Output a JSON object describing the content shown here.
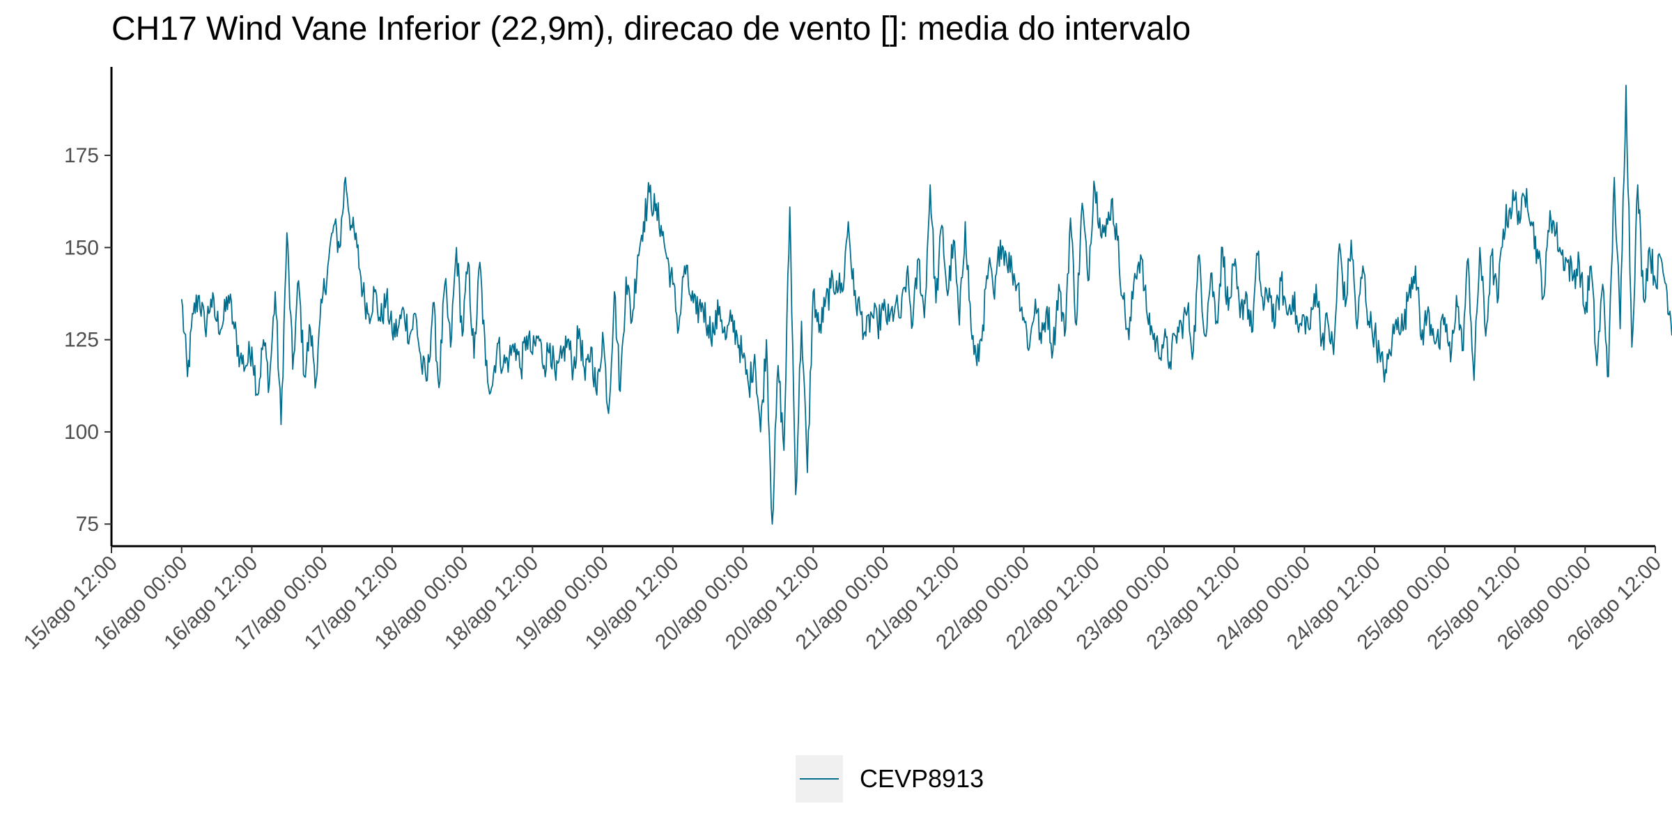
{
  "chart_data": {
    "type": "line",
    "title": "CH17 Wind Vane Inferior (22,9m), direcao de vento []: media do intervalo",
    "xlabel": "",
    "ylabel": "",
    "x_range": [
      "15/ago 12:00",
      "26/ago 12:00"
    ],
    "ylim": [
      69,
      199
    ],
    "yticks": [
      75,
      100,
      125,
      150,
      175
    ],
    "xticks": [
      "15/ago 12:00",
      "16/ago 00:00",
      "16/ago 12:00",
      "17/ago 00:00",
      "17/ago 12:00",
      "18/ago 00:00",
      "18/ago 12:00",
      "19/ago 00:00",
      "19/ago 12:00",
      "20/ago 00:00",
      "20/ago 12:00",
      "21/ago 00:00",
      "21/ago 12:00",
      "22/ago 00:00",
      "22/ago 12:00",
      "23/ago 00:00",
      "23/ago 12:00",
      "24/ago 00:00",
      "24/ago 12:00",
      "25/ago 00:00",
      "25/ago 12:00",
      "26/ago 00:00",
      "26/ago 12:00"
    ],
    "grid": false,
    "legend_position": "bottom",
    "series": [
      {
        "name": "CEVP8913",
        "color": "#006d8c",
        "points": [
          [
            "16/ago 00:00",
            136
          ],
          [
            "16/ago 01:00",
            115
          ],
          [
            "16/ago 02:00",
            132
          ],
          [
            "16/ago 03:00",
            137
          ],
          [
            "16/ago 04:00",
            128
          ],
          [
            "16/ago 05:00",
            136
          ],
          [
            "16/ago 06:00",
            130
          ],
          [
            "16/ago 07:00",
            129
          ],
          [
            "16/ago 08:00",
            137
          ],
          [
            "16/ago 09:00",
            128
          ],
          [
            "16/ago 10:00",
            120
          ],
          [
            "16/ago 11:00",
            118
          ],
          [
            "16/ago 12:00",
            123
          ],
          [
            "16/ago 13:00",
            110
          ],
          [
            "16/ago 14:00",
            125
          ],
          [
            "16/ago 15:00",
            113
          ],
          [
            "16/ago 16:00",
            138
          ],
          [
            "16/ago 17:00",
            102
          ],
          [
            "16/ago 18:00",
            154
          ],
          [
            "16/ago 19:00",
            117
          ],
          [
            "16/ago 20:00",
            141
          ],
          [
            "16/ago 21:00",
            115
          ],
          [
            "16/ago 22:00",
            128
          ],
          [
            "16/ago 23:00",
            114
          ],
          [
            "17/ago 00:00",
            135
          ],
          [
            "17/ago 01:00",
            145
          ],
          [
            "17/ago 02:00",
            156
          ],
          [
            "17/ago 03:00",
            150
          ],
          [
            "17/ago 04:00",
            169
          ],
          [
            "17/ago 05:00",
            156
          ],
          [
            "17/ago 06:00",
            150
          ],
          [
            "17/ago 07:00",
            138
          ],
          [
            "17/ago 08:00",
            132
          ],
          [
            "17/ago 09:00",
            138
          ],
          [
            "17/ago 10:00",
            130
          ],
          [
            "17/ago 11:00",
            136
          ],
          [
            "17/ago 12:00",
            127
          ],
          [
            "17/ago 13:00",
            128
          ],
          [
            "17/ago 14:00",
            133
          ],
          [
            "17/ago 15:00",
            126
          ],
          [
            "17/ago 16:00",
            132
          ],
          [
            "17/ago 17:00",
            118
          ],
          [
            "17/ago 18:00",
            114
          ],
          [
            "17/ago 19:00",
            135
          ],
          [
            "17/ago 20:00",
            112
          ],
          [
            "17/ago 21:00",
            140
          ],
          [
            "17/ago 22:00",
            123
          ],
          [
            "17/ago 23:00",
            150
          ],
          [
            "18/ago 00:00",
            126
          ],
          [
            "18/ago 01:00",
            146
          ],
          [
            "18/ago 02:00",
            120
          ],
          [
            "18/ago 03:00",
            146
          ],
          [
            "18/ago 04:00",
            118
          ],
          [
            "18/ago 05:00",
            112
          ],
          [
            "18/ago 06:00",
            124
          ],
          [
            "18/ago 07:00",
            118
          ],
          [
            "18/ago 08:00",
            120
          ],
          [
            "18/ago 09:00",
            124
          ],
          [
            "18/ago 10:00",
            117
          ],
          [
            "18/ago 11:00",
            126
          ],
          [
            "18/ago 12:00",
            121
          ],
          [
            "18/ago 13:00",
            126
          ],
          [
            "18/ago 14:00",
            118
          ],
          [
            "18/ago 15:00",
            124
          ],
          [
            "18/ago 16:00",
            114
          ],
          [
            "18/ago 17:00",
            120
          ],
          [
            "18/ago 18:00",
            125
          ],
          [
            "18/ago 19:00",
            117
          ],
          [
            "18/ago 20:00",
            128
          ],
          [
            "18/ago 21:00",
            114
          ],
          [
            "18/ago 22:00",
            123
          ],
          [
            "18/ago 23:00",
            110
          ],
          [
            "19/ago 00:00",
            127
          ],
          [
            "19/ago 01:00",
            105
          ],
          [
            "19/ago 02:00",
            138
          ],
          [
            "19/ago 03:00",
            111
          ],
          [
            "19/ago 04:00",
            142
          ],
          [
            "19/ago 05:00",
            130
          ],
          [
            "19/ago 06:00",
            148
          ],
          [
            "19/ago 07:00",
            157
          ],
          [
            "19/ago 08:00",
            165
          ],
          [
            "19/ago 09:00",
            160
          ],
          [
            "19/ago 10:00",
            156
          ],
          [
            "19/ago 11:00",
            147
          ],
          [
            "19/ago 12:00",
            140
          ],
          [
            "19/ago 13:00",
            128
          ],
          [
            "19/ago 14:00",
            145
          ],
          [
            "19/ago 15:00",
            137
          ],
          [
            "19/ago 16:00",
            132
          ],
          [
            "19/ago 17:00",
            135
          ],
          [
            "19/ago 18:00",
            129
          ],
          [
            "19/ago 19:00",
            127
          ],
          [
            "19/ago 20:00",
            134
          ],
          [
            "19/ago 21:00",
            125
          ],
          [
            "19/ago 22:00",
            130
          ],
          [
            "19/ago 23:00",
            126
          ],
          [
            "20/ago 00:00",
            120
          ],
          [
            "20/ago 01:00",
            112
          ],
          [
            "20/ago 02:00",
            121
          ],
          [
            "20/ago 03:00",
            100
          ],
          [
            "20/ago 04:00",
            125
          ],
          [
            "20/ago 05:00",
            75
          ],
          [
            "20/ago 06:00",
            118
          ],
          [
            "20/ago 07:00",
            95
          ],
          [
            "20/ago 08:00",
            161
          ],
          [
            "20/ago 09:00",
            83
          ],
          [
            "20/ago 10:00",
            130
          ],
          [
            "20/ago 11:00",
            89
          ],
          [
            "20/ago 12:00",
            138
          ],
          [
            "20/ago 13:00",
            127
          ],
          [
            "20/ago 14:00",
            134
          ],
          [
            "20/ago 15:00",
            139
          ],
          [
            "20/ago 16:00",
            141
          ],
          [
            "20/ago 17:00",
            138
          ],
          [
            "20/ago 18:00",
            157
          ],
          [
            "20/ago 19:00",
            137
          ],
          [
            "20/ago 20:00",
            133
          ],
          [
            "20/ago 21:00",
            126
          ],
          [
            "20/ago 22:00",
            132
          ],
          [
            "20/ago 23:00",
            129
          ],
          [
            "21/ago 00:00",
            133
          ],
          [
            "21/ago 01:00",
            130
          ],
          [
            "21/ago 02:00",
            134
          ],
          [
            "21/ago 03:00",
            131
          ],
          [
            "21/ago 04:00",
            143
          ],
          [
            "21/ago 05:00",
            129
          ],
          [
            "21/ago 06:00",
            147
          ],
          [
            "21/ago 07:00",
            131
          ],
          [
            "21/ago 08:00",
            167
          ],
          [
            "21/ago 09:00",
            135
          ],
          [
            "21/ago 10:00",
            156
          ],
          [
            "21/ago 11:00",
            137
          ],
          [
            "21/ago 12:00",
            152
          ],
          [
            "21/ago 13:00",
            129
          ],
          [
            "21/ago 14:00",
            157
          ],
          [
            "21/ago 15:00",
            128
          ],
          [
            "21/ago 16:00",
            118
          ],
          [
            "21/ago 17:00",
            129
          ],
          [
            "21/ago 18:00",
            145
          ],
          [
            "21/ago 19:00",
            136
          ],
          [
            "21/ago 20:00",
            152
          ],
          [
            "21/ago 21:00",
            148
          ],
          [
            "21/ago 22:00",
            144
          ],
          [
            "21/ago 23:00",
            140
          ],
          [
            "22/ago 00:00",
            131
          ],
          [
            "22/ago 01:00",
            123
          ],
          [
            "22/ago 02:00",
            136
          ],
          [
            "22/ago 03:00",
            124
          ],
          [
            "22/ago 04:00",
            134
          ],
          [
            "22/ago 05:00",
            122
          ],
          [
            "22/ago 06:00",
            140
          ],
          [
            "22/ago 07:00",
            126
          ],
          [
            "22/ago 08:00",
            158
          ],
          [
            "22/ago 09:00",
            129
          ],
          [
            "22/ago 10:00",
            162
          ],
          [
            "22/ago 11:00",
            141
          ],
          [
            "22/ago 12:00",
            168
          ],
          [
            "22/ago 13:00",
            158
          ],
          [
            "22/ago 14:00",
            153
          ],
          [
            "22/ago 15:00",
            163
          ],
          [
            "22/ago 16:00",
            152
          ],
          [
            "22/ago 17:00",
            136
          ],
          [
            "22/ago 18:00",
            125
          ],
          [
            "22/ago 19:00",
            143
          ],
          [
            "22/ago 20:00",
            148
          ],
          [
            "22/ago 21:00",
            133
          ],
          [
            "22/ago 22:00",
            127
          ],
          [
            "22/ago 23:00",
            122
          ],
          [
            "23/ago 00:00",
            125
          ],
          [
            "23/ago 01:00",
            119
          ],
          [
            "23/ago 02:00",
            126
          ],
          [
            "23/ago 03:00",
            129
          ],
          [
            "23/ago 04:00",
            133
          ],
          [
            "23/ago 05:00",
            122
          ],
          [
            "23/ago 06:00",
            148
          ],
          [
            "23/ago 07:00",
            126
          ],
          [
            "23/ago 08:00",
            143
          ],
          [
            "23/ago 09:00",
            130
          ],
          [
            "23/ago 10:00",
            150
          ],
          [
            "23/ago 11:00",
            133
          ],
          [
            "23/ago 12:00",
            145
          ],
          [
            "23/ago 13:00",
            131
          ],
          [
            "23/ago 14:00",
            138
          ],
          [
            "23/ago 15:00",
            127
          ],
          [
            "23/ago 16:00",
            148
          ],
          [
            "23/ago 17:00",
            133
          ],
          [
            "23/ago 18:00",
            139
          ],
          [
            "23/ago 19:00",
            129
          ],
          [
            "23/ago 20:00",
            141
          ],
          [
            "23/ago 21:00",
            132
          ],
          [
            "23/ago 22:00",
            137
          ],
          [
            "23/ago 23:00",
            127
          ],
          [
            "24/ago 00:00",
            131
          ],
          [
            "24/ago 01:00",
            128
          ],
          [
            "24/ago 02:00",
            140
          ],
          [
            "24/ago 03:00",
            125
          ],
          [
            "24/ago 04:00",
            130
          ],
          [
            "24/ago 05:00",
            121
          ],
          [
            "24/ago 06:00",
            151
          ],
          [
            "24/ago 07:00",
            134
          ],
          [
            "24/ago 08:00",
            152
          ],
          [
            "24/ago 09:00",
            128
          ],
          [
            "24/ago 10:00",
            145
          ],
          [
            "24/ago 11:00",
            130
          ],
          [
            "24/ago 12:00",
            127
          ],
          [
            "24/ago 13:00",
            119
          ],
          [
            "24/ago 14:00",
            116
          ],
          [
            "24/ago 15:00",
            125
          ],
          [
            "24/ago 16:00",
            131
          ],
          [
            "24/ago 17:00",
            128
          ],
          [
            "24/ago 18:00",
            140
          ],
          [
            "24/ago 19:00",
            145
          ],
          [
            "24/ago 20:00",
            125
          ],
          [
            "24/ago 21:00",
            132
          ],
          [
            "24/ago 22:00",
            128
          ],
          [
            "24/ago 23:00",
            123
          ],
          [
            "25/ago 00:00",
            131
          ],
          [
            "25/ago 01:00",
            119
          ],
          [
            "25/ago 02:00",
            137
          ],
          [
            "25/ago 03:00",
            122
          ],
          [
            "25/ago 04:00",
            147
          ],
          [
            "25/ago 05:00",
            114
          ],
          [
            "25/ago 06:00",
            150
          ],
          [
            "25/ago 07:00",
            126
          ],
          [
            "25/ago 08:00",
            148
          ],
          [
            "25/ago 09:00",
            135
          ],
          [
            "25/ago 10:00",
            155
          ],
          [
            "25/ago 11:00",
            160
          ],
          [
            "25/ago 12:00",
            163
          ],
          [
            "25/ago 13:00",
            158
          ],
          [
            "25/ago 14:00",
            166
          ],
          [
            "25/ago 15:00",
            156
          ],
          [
            "25/ago 16:00",
            147
          ],
          [
            "25/ago 17:00",
            137
          ],
          [
            "25/ago 18:00",
            160
          ],
          [
            "25/ago 19:00",
            154
          ],
          [
            "25/ago 20:00",
            148
          ],
          [
            "25/ago 21:00",
            146
          ],
          [
            "25/ago 22:00",
            142
          ],
          [
            "25/ago 23:00",
            146
          ],
          [
            "26/ago 00:00",
            132
          ],
          [
            "26/ago 01:00",
            145
          ],
          [
            "26/ago 02:00",
            118
          ],
          [
            "26/ago 03:00",
            140
          ],
          [
            "26/ago 04:00",
            115
          ],
          [
            "26/ago 05:00",
            169
          ],
          [
            "26/ago 06:00",
            128
          ],
          [
            "26/ago 07:00",
            194
          ],
          [
            "26/ago 08:00",
            123
          ],
          [
            "26/ago 09:00",
            167
          ],
          [
            "26/ago 10:00",
            136
          ],
          [
            "26/ago 11:00",
            150
          ],
          [
            "26/ago 12:00",
            141
          ],
          [
            "26/ago 13:00",
            147
          ],
          [
            "26/ago 14:00",
            138
          ],
          [
            "26/ago 15:00",
            128
          ],
          [
            "26/ago 16:00",
            132
          ]
        ]
      }
    ]
  }
}
